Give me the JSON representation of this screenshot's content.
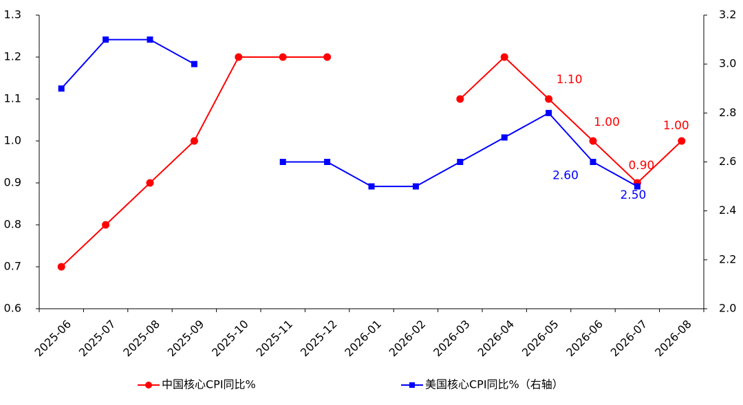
{
  "chart_data": {
    "type": "line",
    "categories": [
      "2025-06",
      "2025-07",
      "2025-08",
      "2025-09",
      "2025-10",
      "2025-11",
      "2025-12",
      "2026-01",
      "2026-02",
      "2026-03",
      "2026-04",
      "2026-05",
      "2026-06",
      "2026-07",
      "2026-08"
    ],
    "series": [
      {
        "name": "中国核心CPI同比%",
        "color": "#ff0000",
        "marker": "circle",
        "values": [
          0.7,
          0.8,
          0.9,
          1.0,
          1.2,
          1.2,
          1.2,
          null,
          null,
          1.1,
          1.2,
          1.1,
          1.0,
          0.9,
          1.0
        ],
        "value_labels": [
          null,
          null,
          null,
          null,
          null,
          null,
          null,
          null,
          null,
          null,
          null,
          "1.10",
          "1.00",
          "0.90",
          "1.00"
        ]
      },
      {
        "name": "美国核心CPI同比%（右轴）",
        "color": "#0000ff",
        "marker": "square",
        "axis": "y2",
        "values": [
          2.9,
          3.1,
          3.1,
          3.0,
          null,
          2.6,
          2.6,
          2.5,
          2.5,
          2.6,
          2.7,
          2.8,
          2.6,
          2.5,
          null
        ],
        "value_labels": [
          null,
          null,
          null,
          null,
          null,
          null,
          null,
          null,
          null,
          null,
          null,
          null,
          "2.60",
          "2.50",
          null
        ]
      }
    ],
    "ylim": [
      0.6,
      1.3
    ],
    "yticks": [
      0.6,
      0.7,
      0.8,
      0.9,
      {
        "value": 1,
        "label": "1.0"
      },
      1.1,
      1.2,
      1.3
    ],
    "y2lim": [
      2.0,
      3.2
    ],
    "y2ticks": [
      {
        "value": 2,
        "label": "2.0"
      },
      2.2,
      2.4,
      2.6,
      2.8,
      {
        "value": 3,
        "label": "3.0"
      },
      3.2
    ],
    "grid": false,
    "legend": "bottom"
  }
}
